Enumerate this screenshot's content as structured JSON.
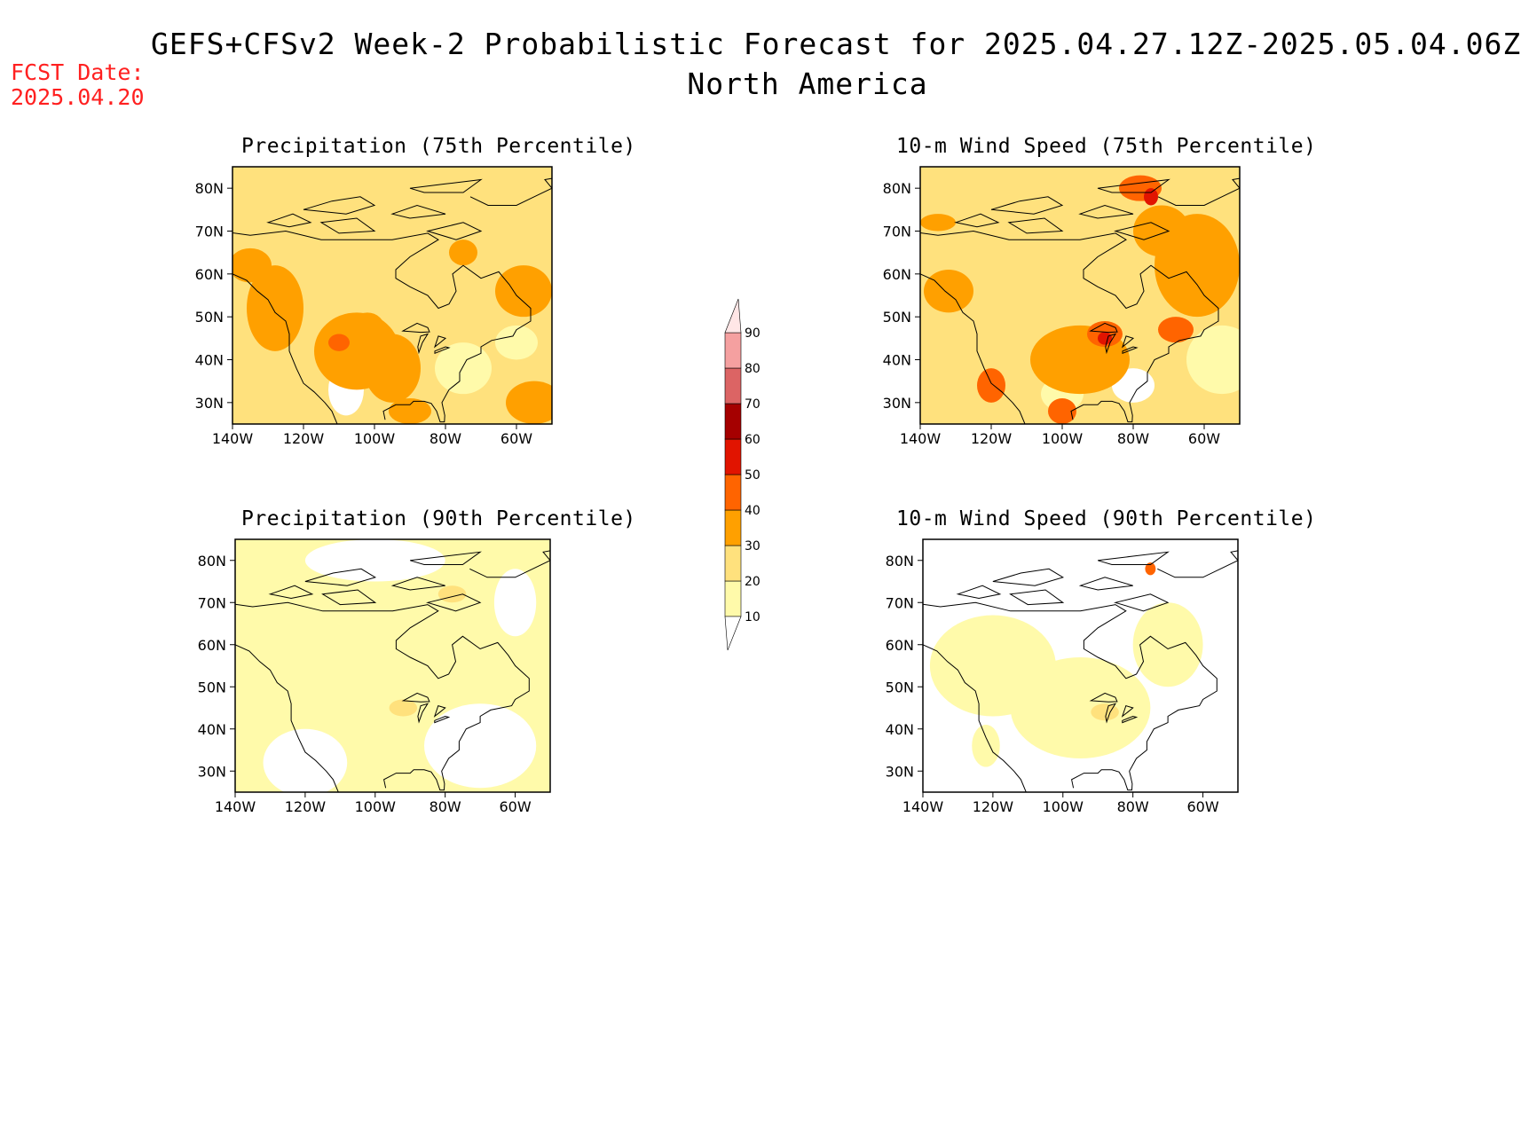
{
  "header": {
    "title": "GEFS+CFSv2 Week-2 Probabilistic Forecast for 2025.04.27.12Z-2025.05.04.06Z",
    "subtitle": "North America",
    "fcst_label": "FCST Date:",
    "fcst_date": "2025.04.20"
  },
  "panels": [
    {
      "id": "precip75",
      "title": "Precipitation (75th Percentile)",
      "fill_level": 20
    },
    {
      "id": "wind75",
      "title": "10-m Wind Speed (75th Percentile)",
      "fill_level": 20
    },
    {
      "id": "precip90",
      "title": "Precipitation (90th Percentile)",
      "fill_level": 10
    },
    {
      "id": "wind90",
      "title": "10-m Wind Speed (90th Percentile)",
      "fill_level": 0
    }
  ],
  "axes": {
    "lon_ticks": [
      "140W",
      "120W",
      "100W",
      "80W",
      "60W"
    ],
    "lat_ticks": [
      "80N",
      "70N",
      "60N",
      "50N",
      "40N",
      "30N"
    ],
    "lon_range": [
      -140,
      -50
    ],
    "lat_range": [
      25,
      85
    ]
  },
  "colorbar": {
    "levels": [
      10,
      20,
      30,
      40,
      50,
      60,
      70,
      80,
      90
    ],
    "colors": [
      "#fffaaa",
      "#ffe17d",
      "#ffa000",
      "#ff6400",
      "#e11400",
      "#a50000",
      "#dc6464",
      "#f5a0a0",
      "#ffe6e6"
    ],
    "labels": [
      "10",
      "20",
      "30",
      "40",
      "50",
      "60",
      "70",
      "80",
      "90"
    ]
  }
}
